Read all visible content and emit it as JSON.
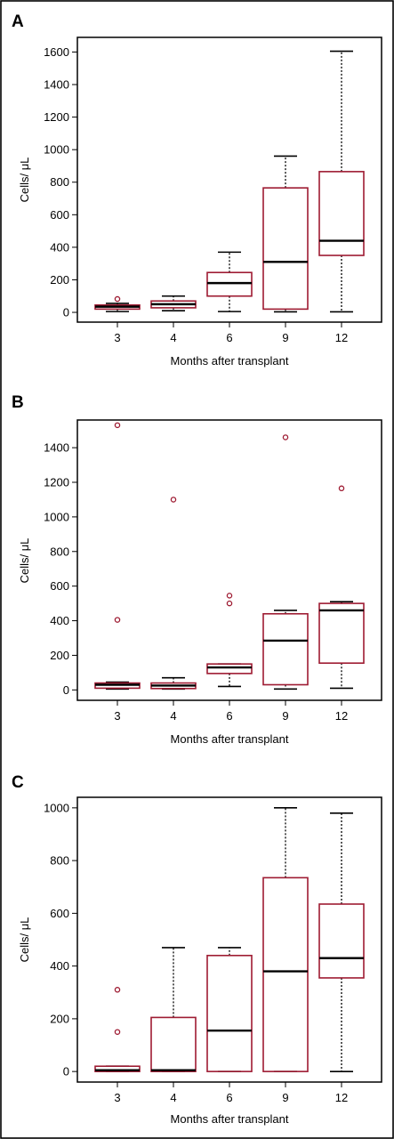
{
  "chart_data": [
    {
      "panel": "A",
      "type": "box",
      "xlabel": "Months after transplant",
      "ylabel": "Cells/ μL",
      "categories": [
        "3",
        "4",
        "6",
        "9",
        "12"
      ],
      "yticks": [
        0,
        200,
        400,
        600,
        800,
        1000,
        1200,
        1600
      ],
      "yticks_all": [
        0,
        200,
        400,
        600,
        800,
        1000,
        1200,
        1400,
        1600
      ],
      "ylim": [
        -60,
        1690
      ],
      "boxes": [
        {
          "min": 5,
          "q1": 20,
          "median": 35,
          "q3": 45,
          "max": 55,
          "outliers": [
            82
          ]
        },
        {
          "min": 10,
          "q1": 28,
          "median": 50,
          "q3": 70,
          "max": 100,
          "outliers": []
        },
        {
          "min": 5,
          "q1": 100,
          "median": 180,
          "q3": 245,
          "max": 370,
          "outliers": []
        },
        {
          "min": 3,
          "q1": 20,
          "median": 310,
          "q3": 765,
          "max": 960,
          "outliers": []
        },
        {
          "min": 3,
          "q1": 350,
          "median": 440,
          "q3": 865,
          "max": 1605,
          "outliers": []
        }
      ]
    },
    {
      "panel": "B",
      "type": "box",
      "xlabel": "Months after transplant",
      "ylabel": "Cells/ μL",
      "categories": [
        "3",
        "4",
        "6",
        "9",
        "12"
      ],
      "yticks": [
        0,
        200,
        400,
        600,
        800,
        1000,
        1200,
        1400
      ],
      "ylim": [
        -60,
        1560
      ],
      "boxes": [
        {
          "min": 5,
          "q1": 10,
          "median": 30,
          "q3": 40,
          "max": 45,
          "outliers": [
            405,
            1530
          ]
        },
        {
          "min": 5,
          "q1": 8,
          "median": 25,
          "q3": 40,
          "max": 70,
          "outliers": [
            1100
          ]
        },
        {
          "min": 20,
          "q1": 95,
          "median": 130,
          "q3": 150,
          "max": 150,
          "outliers": [
            500,
            545
          ]
        },
        {
          "min": 5,
          "q1": 30,
          "median": 285,
          "q3": 440,
          "max": 460,
          "outliers": [
            1460
          ]
        },
        {
          "min": 10,
          "q1": 155,
          "median": 460,
          "q3": 500,
          "max": 510,
          "outliers": [
            1165
          ]
        }
      ]
    },
    {
      "panel": "C",
      "type": "box",
      "xlabel": "Months after transplant",
      "ylabel": "Cells/ μL",
      "categories": [
        "3",
        "4",
        "6",
        "9",
        "12"
      ],
      "yticks": [
        0,
        200,
        400,
        600,
        800,
        1000
      ],
      "ylim": [
        -40,
        1040
      ],
      "boxes": [
        {
          "min": 0,
          "q1": 0,
          "median": 5,
          "q3": 20,
          "max": 20,
          "outliers": [
            150,
            310
          ]
        },
        {
          "min": 0,
          "q1": 0,
          "median": 5,
          "q3": 205,
          "max": 470,
          "outliers": []
        },
        {
          "min": 0,
          "q1": 0,
          "median": 155,
          "q3": 440,
          "max": 470,
          "outliers": []
        },
        {
          "min": 0,
          "q1": 0,
          "median": 380,
          "q3": 735,
          "max": 1000,
          "outliers": []
        },
        {
          "min": 0,
          "q1": 355,
          "median": 430,
          "q3": 635,
          "max": 980,
          "outliers": []
        }
      ]
    }
  ]
}
